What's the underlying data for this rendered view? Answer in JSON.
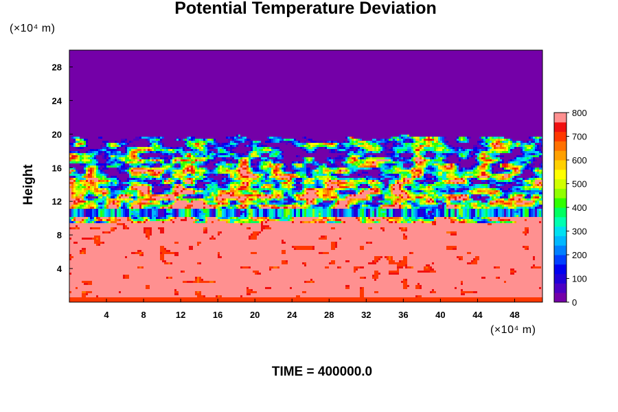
{
  "chart_data": {
    "type": "heatmap",
    "title": "Potential Temperature Deviation",
    "ylabel": "Height",
    "y_unit": "(×10⁴ m)",
    "x_unit": "(×10⁴ m)",
    "footer": "TIME = 400000.0",
    "x_ticks": [
      4,
      8,
      12,
      16,
      20,
      24,
      28,
      32,
      36,
      40,
      44,
      48
    ],
    "y_ticks": [
      4,
      8,
      12,
      16,
      20,
      24,
      28
    ],
    "xlim": [
      0,
      51
    ],
    "ylim": [
      0,
      30
    ],
    "colorbar": {
      "ticks": [
        0,
        100,
        200,
        300,
        400,
        500,
        600,
        700,
        800
      ],
      "range": [
        0,
        800
      ],
      "levels": 20,
      "colors": [
        "#7400a8",
        "#4c00c4",
        "#2000d8",
        "#0000f0",
        "#0040ff",
        "#0080ff",
        "#00b8ff",
        "#00e0f0",
        "#00ffb0",
        "#00ff60",
        "#30ff00",
        "#90ff00",
        "#d0ff00",
        "#ffff00",
        "#ffd000",
        "#ffa000",
        "#ff7000",
        "#ff3800",
        "#f01010",
        "#ff9090"
      ]
    },
    "field_summary": {
      "upper_layer": {
        "y_from": 19.5,
        "y_to": 30,
        "value": 0
      },
      "turbulent_band": {
        "y_from": 9.5,
        "y_to": 19.5,
        "values": "0–800 mixed"
      },
      "lower_layer": {
        "y_from": 0,
        "y_to": 10,
        "value": 800
      }
    }
  }
}
